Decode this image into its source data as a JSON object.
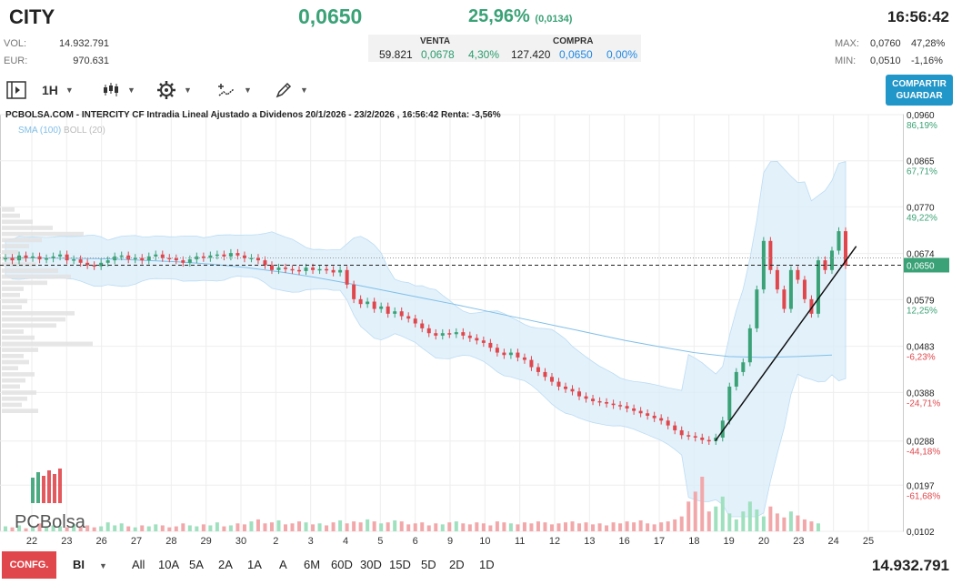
{
  "header": {
    "ticker": "CITY",
    "price": "0,0650",
    "change_pct": "25,96%",
    "change_abs": "(0,0134)",
    "time": "16:56:42"
  },
  "stats": {
    "vol_label": "VOL:",
    "vol_value": "14.932.791",
    "eur_label": "EUR:",
    "eur_value": "970.631",
    "max_label": "MAX:",
    "max_value": "0,0760",
    "max_pct": "47,28%",
    "min_label": "MIN:",
    "min_value": "0,0510",
    "min_pct": "-1,16%"
  },
  "quotes": {
    "venta_label": "VENTA",
    "venta_qty": "59.821",
    "venta_price": "0,0678",
    "venta_pct": "4,30%",
    "compra_label": "COMPRA",
    "compra_qty": "127.420",
    "compra_price": "0,0650",
    "compra_pct": "0,00%"
  },
  "toolbar": {
    "interval": "1H",
    "share_label_1": "COMPARTIR",
    "share_label_2": "GUARDAR",
    "icons": [
      "panel-toggle-icon",
      "candlestick-icon",
      "gear-icon",
      "drawing-tools-icon",
      "pencil-icon"
    ]
  },
  "colors": {
    "up": "#3aa276",
    "down": "#e0474c",
    "sma": "#7fbfe8",
    "boll_fill": "#d9ecfa",
    "accent": "#2196c8"
  },
  "chart_data": {
    "type": "candlestick",
    "title": "PCBOLSA.COM - INTERCITY CF Intradia Lineal Ajustado a Dividenos 20/1/2026 - 23/2/2026 , 16:56:42 Renta: -3,56%",
    "legend": [
      "SMA (100)",
      "BOLL (20)"
    ],
    "watermark": "PCBolsa",
    "ylim": [
      0.0102,
      0.096
    ],
    "y_ticks": [
      {
        "value": 0.096,
        "label": "0,0960",
        "pct": "86,19%"
      },
      {
        "value": 0.0865,
        "label": "0,0865",
        "pct": "67,71%"
      },
      {
        "value": 0.077,
        "label": "0,0770",
        "pct": "49,22%"
      },
      {
        "value": 0.0674,
        "label": "0,0674",
        "pct": "30,73%"
      },
      {
        "value": 0.0579,
        "label": "0,0579",
        "pct": "12,25%"
      },
      {
        "value": 0.0483,
        "label": "0,0483",
        "pct": "-6,23%"
      },
      {
        "value": 0.0388,
        "label": "0,0388",
        "pct": "-24,71%"
      },
      {
        "value": 0.0288,
        "label": "0,0288",
        "pct": "-44,18%"
      },
      {
        "value": 0.0197,
        "label": "0,0197",
        "pct": "-61,68%"
      },
      {
        "value": 0.0102,
        "label": "0,0102",
        "pct": ""
      }
    ],
    "last_price": {
      "value": 0.065,
      "label": "0,0650"
    },
    "reference_price": 0.0665,
    "x_labels": [
      "22",
      "23",
      "26",
      "27",
      "28",
      "29",
      "30",
      "2",
      "3",
      "4",
      "5",
      "6",
      "9",
      "10",
      "11",
      "12",
      "13",
      "16",
      "17",
      "18",
      "19",
      "20",
      "23",
      "24",
      "25"
    ],
    "series": [
      {
        "name": "Precio",
        "close": [
          0.0665,
          0.066,
          0.067,
          0.0665,
          0.0668,
          0.0662,
          0.0664,
          0.0668,
          0.0672,
          0.066,
          0.0662,
          0.0655,
          0.065,
          0.0648,
          0.0655,
          0.066,
          0.0668,
          0.067,
          0.0662,
          0.0665,
          0.066,
          0.0668,
          0.0672,
          0.0665,
          0.0664,
          0.066,
          0.0655,
          0.0662,
          0.0668,
          0.0665,
          0.067,
          0.0672,
          0.0668,
          0.0675,
          0.067,
          0.0664,
          0.0665,
          0.066,
          0.065,
          0.064,
          0.0645,
          0.0642,
          0.064,
          0.0638,
          0.0645,
          0.064,
          0.0642,
          0.064,
          0.0635,
          0.064,
          0.061,
          0.058,
          0.057,
          0.0575,
          0.056,
          0.0565,
          0.055,
          0.0555,
          0.0545,
          0.054,
          0.053,
          0.052,
          0.051,
          0.0505,
          0.051,
          0.0508,
          0.0512,
          0.0505,
          0.05,
          0.0495,
          0.049,
          0.048,
          0.047,
          0.0465,
          0.047,
          0.046,
          0.0455,
          0.044,
          0.043,
          0.042,
          0.041,
          0.04,
          0.0395,
          0.039,
          0.038,
          0.0375,
          0.037,
          0.0368,
          0.0365,
          0.0362,
          0.036,
          0.0355,
          0.035,
          0.0345,
          0.034,
          0.0335,
          0.033,
          0.032,
          0.031,
          0.03,
          0.0298,
          0.0295,
          0.029,
          0.0288,
          0.0295,
          0.033,
          0.04,
          0.043,
          0.045,
          0.052,
          0.06,
          0.07,
          0.064,
          0.06,
          0.056,
          0.064,
          0.062,
          0.058,
          0.055,
          0.066,
          0.064,
          0.068,
          0.072,
          0.065
        ]
      },
      {
        "name": "SMA (100)",
        "values": [
          0.0665,
          0.0665,
          0.0664,
          0.0663,
          0.066,
          0.0657,
          0.0652,
          0.0645,
          0.0636,
          0.0625,
          0.0612,
          0.0598,
          0.0584,
          0.057,
          0.0555,
          0.054,
          0.0525,
          0.051,
          0.0495,
          0.0482,
          0.047,
          0.0462,
          0.046,
          0.0462,
          0.0465
        ]
      }
    ],
    "volume": [
      5,
      4,
      6,
      3,
      5,
      8,
      4,
      6,
      5,
      4,
      7,
      5,
      6,
      4,
      5,
      9,
      6,
      8,
      5,
      4,
      6,
      5,
      7,
      6,
      4,
      5,
      8,
      6,
      5,
      7,
      6,
      9,
      5,
      6,
      8,
      7,
      10,
      12,
      8,
      9,
      11,
      7,
      8,
      10,
      9,
      7,
      8,
      6,
      9,
      11,
      8,
      10,
      9,
      12,
      10,
      8,
      9,
      11,
      10,
      7,
      8,
      9,
      6,
      8,
      7,
      9,
      10,
      8,
      7,
      9,
      8,
      6,
      10,
      9,
      8,
      7,
      9,
      8,
      10,
      9,
      7,
      8,
      9,
      10,
      8,
      9,
      7,
      8,
      6,
      9,
      8,
      10,
      9,
      11,
      8,
      7,
      9,
      10,
      12,
      15,
      30,
      40,
      55,
      20,
      25,
      35,
      18,
      12,
      20,
      30,
      22,
      15,
      25,
      18,
      14,
      20,
      16,
      12,
      10,
      8
    ],
    "volume_profile": [
      14,
      20,
      34,
      56,
      90,
      44,
      30,
      18,
      26,
      38,
      62,
      76,
      50,
      24,
      20,
      28,
      22,
      80,
      70,
      60,
      24,
      36,
      100,
      40,
      24,
      30,
      18,
      36,
      26,
      20,
      38,
      28,
      22,
      40
    ],
    "trend_line": {
      "from_label": "19",
      "from_value": 0.0288,
      "to_label": "24",
      "to_value": 0.0674
    }
  },
  "bottom": {
    "config_label": "CONFG.",
    "chart_type": "BI",
    "periods": [
      "All",
      "10A",
      "5A",
      "2A",
      "1A",
      "A",
      "6M",
      "60D",
      "30D",
      "15D",
      "5D",
      "2D",
      "1D"
    ],
    "volume_total": "14.932.791"
  }
}
